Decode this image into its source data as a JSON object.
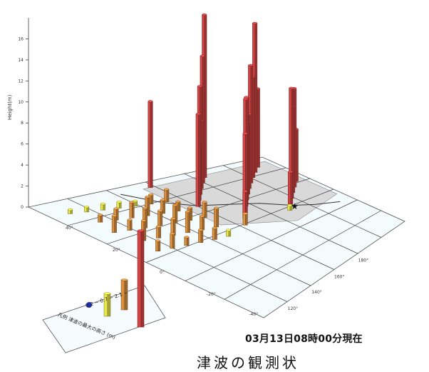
{
  "chart_data": {
    "type": "bar",
    "ylabel": "Height(m)",
    "ylim": [
      0,
      18
    ],
    "yticks": [
      0,
      2,
      4,
      6,
      8,
      10,
      12,
      14,
      16
    ],
    "map_labels": [
      "120°",
      "140°",
      "160°",
      "180°",
      "40°",
      "20°",
      "0°",
      "-20°",
      "-40°"
    ],
    "colors": {
      "low": "#e8e84c",
      "mid": "#d99040",
      "high": "#d44444"
    },
    "bands": [
      {
        "name": "low",
        "min": 0.2,
        "max": 0.7
      },
      {
        "name": "mid",
        "min": 0.7,
        "max": 2.1
      },
      {
        "name": "high",
        "min": 2.1
      }
    ],
    "bars": [
      {
        "value": 0.4
      },
      {
        "value": 0.5
      },
      {
        "value": 0.6
      },
      {
        "value": 0.6
      },
      {
        "value": 0.5
      },
      {
        "value": 0.9
      },
      {
        "value": 1.2
      },
      {
        "value": 0.7
      },
      {
        "value": 1.1
      },
      {
        "value": 1.5
      },
      {
        "value": 1.8
      },
      {
        "value": 1.3
      },
      {
        "value": 0.9
      },
      {
        "value": 1.6
      },
      {
        "value": 1.0
      },
      {
        "value": 1.9
      },
      {
        "value": 1.4
      },
      {
        "value": 1.7
      },
      {
        "value": 1.2
      },
      {
        "value": 1.5
      },
      {
        "value": 1.9
      },
      {
        "value": 1.1
      },
      {
        "value": 1.6
      },
      {
        "value": 2.0
      },
      {
        "value": 1.3
      },
      {
        "value": 1.8
      },
      {
        "value": 1.0
      },
      {
        "value": 1.4
      },
      {
        "value": 0.8
      },
      {
        "value": 1.2
      },
      {
        "value": 1.1
      },
      {
        "value": 0.6
      },
      {
        "value": 8.2
      },
      {
        "value": 15.5
      },
      {
        "value": 7.5
      },
      {
        "value": 12.1
      },
      {
        "value": 14.2
      },
      {
        "value": 6.5
      },
      {
        "value": 9.6
      },
      {
        "value": 10.3
      },
      {
        "value": 11.2
      },
      {
        "value": 5.3
      },
      {
        "value": 7.1
      },
      {
        "value": 8.8
      },
      {
        "value": 6.9
      },
      {
        "value": 5.0
      },
      {
        "value": 9.8
      },
      {
        "value": 9.4
      },
      {
        "value": 10.2
      },
      {
        "value": 8.2
      },
      {
        "value": 7.5
      },
      {
        "value": 10.5
      },
      {
        "value": 2.6
      },
      {
        "value": 3.1
      },
      {
        "value": 1.1
      },
      {
        "value": 0.5
      }
    ],
    "legend": {
      "note": "凡例 津波の最大の高さ (m)",
      "scale_text": "0.2 ~ 0.7 ~ 2.1 ~",
      "marker_color": "#1f2fb0"
    }
  },
  "footer": {
    "timestamp": "03月13日08時00分現在",
    "title": "津波の観測状"
  }
}
